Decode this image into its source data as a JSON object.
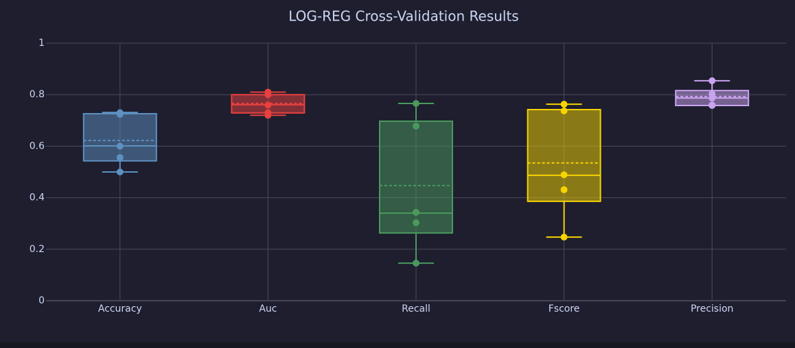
{
  "chart_data": {
    "type": "box",
    "title": "LOG-REG Cross-Validation Results",
    "categories": [
      "Accuracy",
      "Auc",
      "Recall",
      "Fscore",
      "Precision"
    ],
    "boxes": [
      {
        "color": "#5e90c2",
        "low": 0.5,
        "q1": 0.543,
        "median": 0.601,
        "q3": 0.726,
        "high": 0.731,
        "mean": 0.622,
        "points": [
          0.73,
          0.724,
          0.6,
          0.556,
          0.5
        ]
      },
      {
        "color": "#e8403f",
        "low": 0.72,
        "q1": 0.729,
        "median": 0.761,
        "q3": 0.8,
        "high": 0.81,
        "mean": 0.766,
        "points": [
          0.81,
          0.8,
          0.76,
          0.73,
          0.72
        ]
      },
      {
        "color": "#4a9a5e",
        "low": 0.146,
        "q1": 0.263,
        "median": 0.34,
        "q3": 0.697,
        "high": 0.766,
        "mean": 0.447,
        "points": [
          0.766,
          0.678,
          0.343,
          0.303,
          0.146
        ]
      },
      {
        "color": "#f5d400",
        "low": 0.247,
        "q1": 0.386,
        "median": 0.487,
        "q3": 0.742,
        "high": 0.763,
        "mean": 0.535,
        "points": [
          0.763,
          0.737,
          0.489,
          0.431,
          0.247
        ]
      },
      {
        "color": "#c9a3f0",
        "low": 0.758,
        "q1": 0.758,
        "median": 0.787,
        "q3": 0.816,
        "high": 0.854,
        "mean": 0.793,
        "points": [
          0.854,
          0.803,
          0.787,
          0.76,
          0.758
        ]
      }
    ],
    "ylim": [
      0,
      1
    ],
    "yticks": [
      0,
      0.2,
      0.4,
      0.6,
      0.8,
      1
    ],
    "grid": true
  }
}
